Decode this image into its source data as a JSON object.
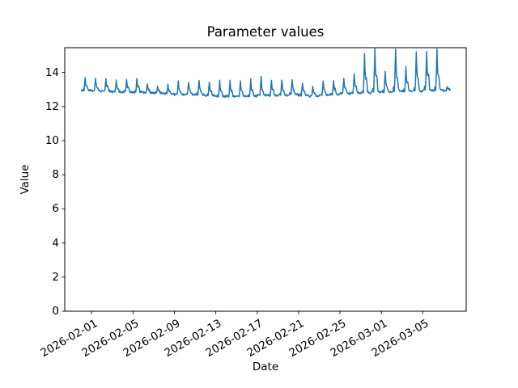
{
  "figure": {
    "title": "Parameter values",
    "xlabel": "Date",
    "ylabel": "Value"
  },
  "chart_data": {
    "type": "line",
    "title": "Parameter values",
    "xlabel": "Date",
    "ylabel": "Value",
    "grid": false,
    "legend": null,
    "background_color": "#ffffff",
    "line_color": "#1f77b4",
    "axis_color": "#000000",
    "ylim": [
      0,
      15.45
    ],
    "xlim_days_from_2026_02_01": [
      -2.6,
      36.2
    ],
    "y_ticks": [
      0,
      2,
      4,
      6,
      8,
      10,
      12,
      14
    ],
    "x_tick_rotation_deg": 30,
    "x_ticks": [
      {
        "label": "2026-02-01",
        "day": 0
      },
      {
        "label": "2026-02-05",
        "day": 4
      },
      {
        "label": "2026-02-09",
        "day": 8
      },
      {
        "label": "2026-02-13",
        "day": 12
      },
      {
        "label": "2026-02-17",
        "day": 16
      },
      {
        "label": "2026-02-21",
        "day": 20
      },
      {
        "label": "2026-02-25",
        "day": 24
      },
      {
        "label": "2026-03-01",
        "day": 28
      },
      {
        "label": "2026-03-05",
        "day": 32
      }
    ],
    "series": [
      {
        "name": "parameter-values",
        "description": "hourly values; one sharp spike per day from daily base up to daily peak",
        "start_day": -1,
        "samples_per_day": 24,
        "noise_amplitude": 0.11,
        "daily": [
          {
            "date": "2026-01-31",
            "base": 12.95,
            "peak": 13.65
          },
          {
            "date": "2026-02-01",
            "base": 12.9,
            "peak": 13.7
          },
          {
            "date": "2026-02-02",
            "base": 12.9,
            "peak": 13.6
          },
          {
            "date": "2026-02-03",
            "base": 12.85,
            "peak": 13.5
          },
          {
            "date": "2026-02-04",
            "base": 12.85,
            "peak": 13.6
          },
          {
            "date": "2026-02-05",
            "base": 12.85,
            "peak": 13.65
          },
          {
            "date": "2026-02-06",
            "base": 12.8,
            "peak": 13.35
          },
          {
            "date": "2026-02-07",
            "base": 12.8,
            "peak": 13.2
          },
          {
            "date": "2026-02-08",
            "base": 12.75,
            "peak": 13.3
          },
          {
            "date": "2026-02-09",
            "base": 12.7,
            "peak": 13.5
          },
          {
            "date": "2026-02-10",
            "base": 12.7,
            "peak": 13.45
          },
          {
            "date": "2026-02-11",
            "base": 12.7,
            "peak": 13.5
          },
          {
            "date": "2026-02-12",
            "base": 12.65,
            "peak": 13.45
          },
          {
            "date": "2026-02-13",
            "base": 12.6,
            "peak": 13.5
          },
          {
            "date": "2026-02-14",
            "base": 12.6,
            "peak": 13.55
          },
          {
            "date": "2026-02-15",
            "base": 12.6,
            "peak": 13.55
          },
          {
            "date": "2026-02-16",
            "base": 12.6,
            "peak": 13.6
          },
          {
            "date": "2026-02-17",
            "base": 12.65,
            "peak": 13.75
          },
          {
            "date": "2026-02-18",
            "base": 12.65,
            "peak": 13.55
          },
          {
            "date": "2026-02-19",
            "base": 12.65,
            "peak": 13.6
          },
          {
            "date": "2026-02-20",
            "base": 12.7,
            "peak": 13.55
          },
          {
            "date": "2026-02-21",
            "base": 12.65,
            "peak": 13.4
          },
          {
            "date": "2026-02-22",
            "base": 12.6,
            "peak": 13.2
          },
          {
            "date": "2026-02-23",
            "base": 12.65,
            "peak": 13.5
          },
          {
            "date": "2026-02-24",
            "base": 12.7,
            "peak": 13.55
          },
          {
            "date": "2026-02-25",
            "base": 12.75,
            "peak": 13.6
          },
          {
            "date": "2026-02-26",
            "base": 12.8,
            "peak": 13.95
          },
          {
            "date": "2026-02-27",
            "base": 12.8,
            "peak": 15.1
          },
          {
            "date": "2026-02-28",
            "base": 12.85,
            "peak": 15.4
          },
          {
            "date": "2026-03-01",
            "base": 12.85,
            "peak": 14.1
          },
          {
            "date": "2026-03-02",
            "base": 12.9,
            "peak": 15.35
          },
          {
            "date": "2026-03-03",
            "base": 12.9,
            "peak": 14.3
          },
          {
            "date": "2026-03-04",
            "base": 12.9,
            "peak": 15.2
          },
          {
            "date": "2026-03-05",
            "base": 12.95,
            "peak": 15.25
          },
          {
            "date": "2026-03-06",
            "base": 12.95,
            "peak": 15.4
          },
          {
            "date": "2026-03-07",
            "base": 12.95,
            "peak": 13.15,
            "partial": 0.7
          }
        ]
      }
    ]
  }
}
